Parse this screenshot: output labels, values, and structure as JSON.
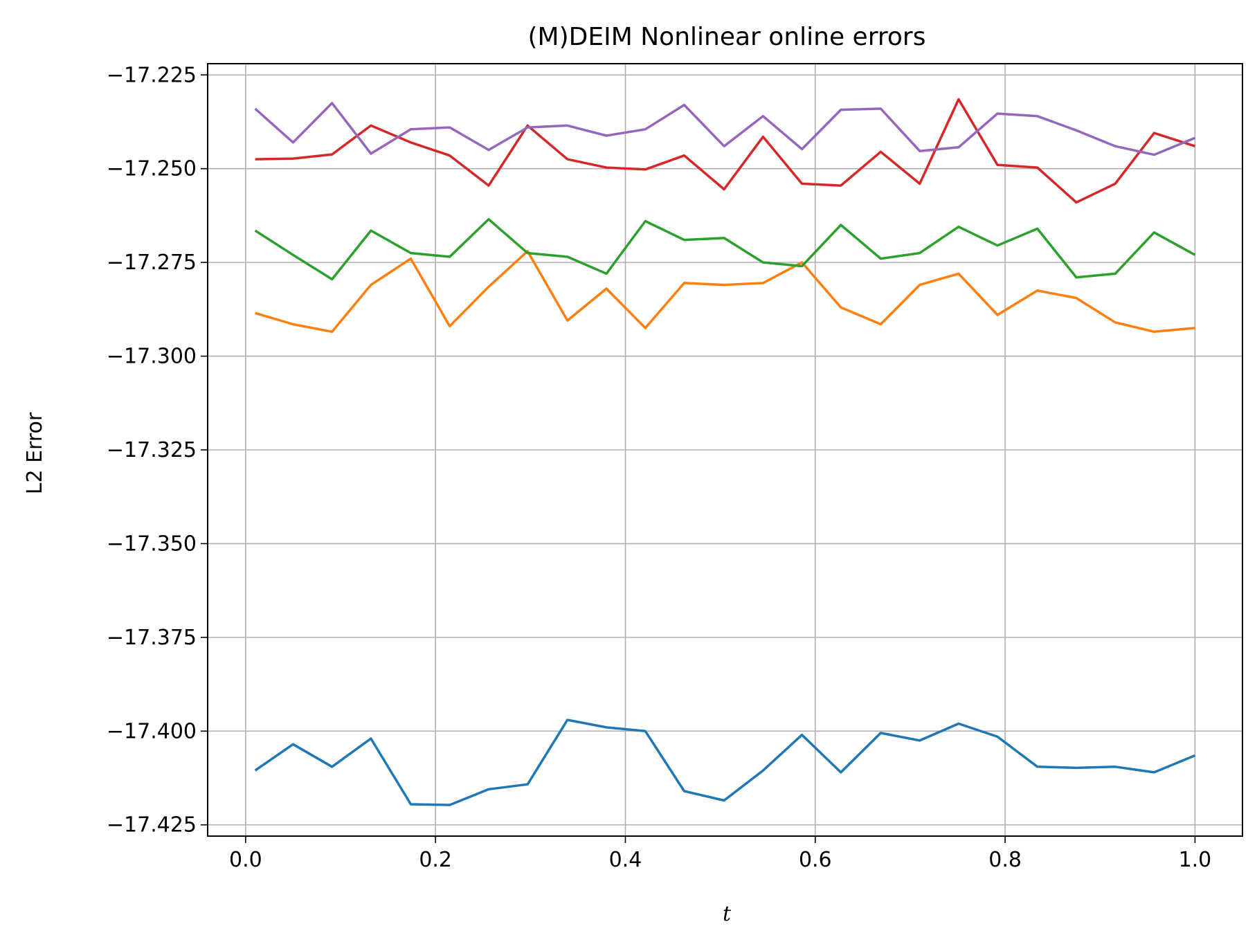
{
  "chart_data": {
    "type": "line",
    "title": "(M)DEIM Nonlinear online errors",
    "xlabel": "t",
    "ylabel": "L2 Error",
    "xlim": [
      -0.04,
      1.05
    ],
    "ylim": [
      -17.428,
      -17.222
    ],
    "xticks": [
      0.0,
      0.2,
      0.4,
      0.6,
      0.8,
      1.0
    ],
    "xtick_labels": [
      "0.0",
      "0.2",
      "0.4",
      "0.6",
      "0.8",
      "1.0"
    ],
    "yticks": [
      -17.225,
      -17.25,
      -17.275,
      -17.3,
      -17.325,
      -17.35,
      -17.375,
      -17.4,
      -17.425
    ],
    "ytick_labels": [
      "−17.225",
      "−17.250",
      "−17.275",
      "−17.300",
      "−17.325",
      "−17.350",
      "−17.375",
      "−17.400",
      "−17.425"
    ],
    "grid": true,
    "x": [
      0.01,
      0.05,
      0.091,
      0.132,
      0.174,
      0.215,
      0.256,
      0.297,
      0.339,
      0.38,
      0.421,
      0.462,
      0.504,
      0.545,
      0.586,
      0.627,
      0.669,
      0.71,
      0.751,
      0.792,
      0.834,
      0.875,
      0.916,
      0.957,
      1.0
    ],
    "series": [
      {
        "color": "#1f77b4",
        "values": [
          -17.4105,
          -17.4035,
          -17.4095,
          -17.402,
          -17.4195,
          -17.4197,
          -17.4155,
          -17.4142,
          -17.397,
          -17.399,
          -17.4,
          -17.416,
          -17.4185,
          -17.4105,
          -17.401,
          -17.411,
          -17.4005,
          -17.4025,
          -17.398,
          -17.4015,
          -17.4095,
          -17.4098,
          -17.4095,
          -17.411,
          -17.4065
        ]
      },
      {
        "color": "#ff7f0e",
        "values": [
          -17.2885,
          -17.2915,
          -17.2935,
          -17.281,
          -17.274,
          -17.292,
          -17.2815,
          -17.272,
          -17.2905,
          -17.282,
          -17.2925,
          -17.2805,
          -17.281,
          -17.2805,
          -17.275,
          -17.287,
          -17.2915,
          -17.281,
          -17.278,
          -17.289,
          -17.2825,
          -17.2845,
          -17.291,
          -17.2935,
          -17.2925
        ]
      },
      {
        "color": "#2ca02c",
        "values": [
          -17.2665,
          -17.273,
          -17.2795,
          -17.2665,
          -17.2725,
          -17.2735,
          -17.2635,
          -17.2725,
          -17.2735,
          -17.278,
          -17.264,
          -17.269,
          -17.2685,
          -17.275,
          -17.276,
          -17.265,
          -17.274,
          -17.2725,
          -17.2655,
          -17.2705,
          -17.266,
          -17.279,
          -17.278,
          -17.267,
          -17.273
        ]
      },
      {
        "color": "#d62728",
        "values": [
          -17.2475,
          -17.2473,
          -17.2462,
          -17.2385,
          -17.243,
          -17.2465,
          -17.2545,
          -17.2385,
          -17.2475,
          -17.2497,
          -17.2502,
          -17.2465,
          -17.2555,
          -17.2415,
          -17.254,
          -17.2545,
          -17.2455,
          -17.254,
          -17.2315,
          -17.249,
          -17.2497,
          -17.259,
          -17.254,
          -17.2405,
          -17.244
        ]
      },
      {
        "color": "#9467bd",
        "values": [
          -17.234,
          -17.243,
          -17.2325,
          -17.246,
          -17.2395,
          -17.239,
          -17.245,
          -17.239,
          -17.2385,
          -17.2412,
          -17.2395,
          -17.233,
          -17.244,
          -17.236,
          -17.2448,
          -17.2343,
          -17.234,
          -17.2453,
          -17.2443,
          -17.2353,
          -17.236,
          -17.2398,
          -17.244,
          -17.2463,
          -17.2418
        ]
      }
    ]
  }
}
